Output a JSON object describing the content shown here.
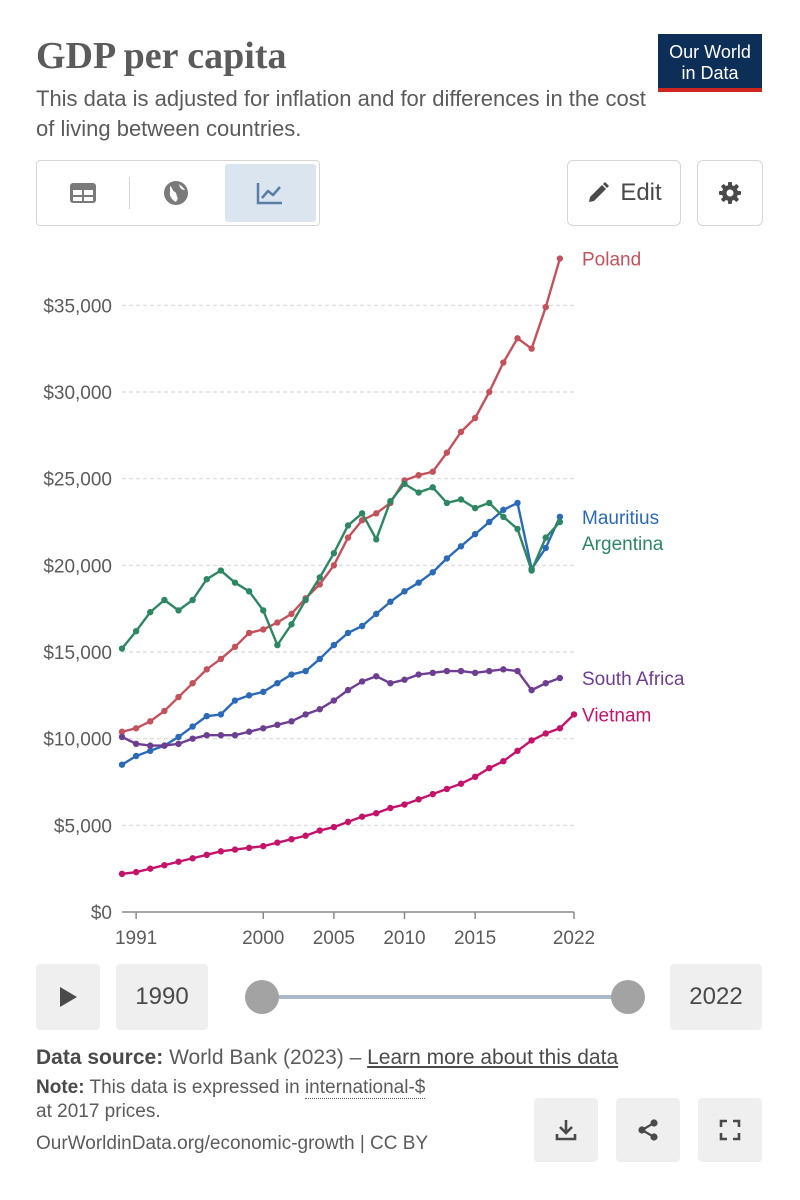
{
  "header": {
    "title": "GDP per capita",
    "subtitle": "This data is adjusted for inflation and for differences in the cost of living between countries.",
    "logo_line1": "Our World",
    "logo_line2": "in Data"
  },
  "controls": {
    "tabs": [
      {
        "name": "table",
        "icon": "table-icon",
        "active": false
      },
      {
        "name": "map",
        "icon": "globe-icon",
        "active": false
      },
      {
        "name": "chart",
        "icon": "line-chart-icon",
        "active": true
      }
    ],
    "edit_label": "Edit",
    "settings_icon": "gear-icon"
  },
  "chart_data": {
    "type": "line",
    "title": "GDP per capita",
    "xlabel": "",
    "ylabel": "",
    "xlim": [
      1990,
      2022
    ],
    "ylim": [
      0,
      37500
    ],
    "x_ticks": [
      {
        "value": 1991,
        "label": "1991"
      },
      {
        "value": 2000,
        "label": "2000"
      },
      {
        "value": 2005,
        "label": "2005"
      },
      {
        "value": 2010,
        "label": "2010"
      },
      {
        "value": 2015,
        "label": "2015"
      },
      {
        "value": 2022,
        "label": "2022"
      }
    ],
    "y_ticks": [
      {
        "value": 0,
        "label": "$0"
      },
      {
        "value": 5000,
        "label": "$5,000"
      },
      {
        "value": 10000,
        "label": "$10,000"
      },
      {
        "value": 15000,
        "label": "$15,000"
      },
      {
        "value": 20000,
        "label": "$20,000"
      },
      {
        "value": 25000,
        "label": "$25,000"
      },
      {
        "value": 30000,
        "label": "$30,000"
      },
      {
        "value": 35000,
        "label": "$35,000"
      }
    ],
    "grid": true,
    "legend": "inline-right",
    "x": [
      1990,
      1991,
      1992,
      1993,
      1994,
      1995,
      1996,
      1997,
      1998,
      1999,
      2000,
      2001,
      2002,
      2003,
      2004,
      2005,
      2006,
      2007,
      2008,
      2009,
      2010,
      2011,
      2012,
      2013,
      2014,
      2015,
      2016,
      2017,
      2018,
      2019,
      2020,
      2021,
      2022
    ],
    "series": [
      {
        "name": "Poland",
        "color": "#c4525d",
        "values": [
          10400,
          10600,
          11000,
          11600,
          12400,
          13200,
          14000,
          14600,
          15300,
          16100,
          16300,
          16700,
          17200,
          18100,
          18900,
          20000,
          21600,
          22600,
          23000,
          23600,
          24900,
          25200,
          25400,
          26500,
          27700,
          28500,
          30000,
          31700,
          33100,
          32500,
          34900,
          37700,
          null
        ]
      },
      {
        "name": "Mauritius",
        "color": "#2a6ab7",
        "values": [
          8500,
          9000,
          9300,
          9600,
          10100,
          10700,
          11300,
          11400,
          12200,
          12500,
          12700,
          13200,
          13700,
          13900,
          14600,
          15400,
          16100,
          16500,
          17200,
          17900,
          18500,
          19000,
          19600,
          20400,
          21100,
          21800,
          22500,
          23200,
          23600,
          19800,
          21000,
          22800,
          null
        ]
      },
      {
        "name": "Argentina",
        "color": "#2e8763",
        "values": [
          15200,
          16200,
          17300,
          18000,
          17400,
          18000,
          19200,
          19700,
          19000,
          18500,
          17400,
          15400,
          16600,
          18000,
          19300,
          20700,
          22300,
          23000,
          21500,
          23700,
          24700,
          24200,
          24500,
          23600,
          23800,
          23300,
          23600,
          22800,
          22100,
          19700,
          21600,
          22500,
          null
        ]
      },
      {
        "name": "South Africa",
        "color": "#6d3e91",
        "values": [
          10100,
          9700,
          9600,
          9600,
          9700,
          10000,
          10200,
          10200,
          10200,
          10400,
          10600,
          10800,
          11000,
          11400,
          11700,
          12200,
          12800,
          13300,
          13600,
          13200,
          13400,
          13700,
          13800,
          13900,
          13900,
          13800,
          13900,
          14000,
          13900,
          12800,
          13200,
          13500,
          null
        ]
      },
      {
        "name": "Vietnam",
        "color": "#c4136b",
        "values": [
          2200,
          2300,
          2500,
          2700,
          2900,
          3100,
          3300,
          3500,
          3600,
          3700,
          3800,
          4000,
          4200,
          4400,
          4700,
          4900,
          5200,
          5500,
          5700,
          6000,
          6200,
          6500,
          6800,
          7100,
          7400,
          7800,
          8300,
          8700,
          9300,
          9900,
          10300,
          10600,
          11400
        ]
      }
    ]
  },
  "timeline": {
    "play_icon": "play-icon",
    "start_year": "1990",
    "end_year": "2022",
    "start_value": 1990,
    "end_value": 2022
  },
  "footer": {
    "source_label": "Data source:",
    "source_text": "World Bank (2023) –",
    "learn_more": "Learn more about this data",
    "note_label": "Note:",
    "note_text": "This data is expressed in",
    "note_link": "international-$",
    "note_text2": "at 2017 prices.",
    "url_text": "OurWorldinData.org/economic-growth | CC BY",
    "download_icon": "download-icon",
    "share_icon": "share-icon",
    "fullscreen_icon": "fullscreen-icon"
  }
}
